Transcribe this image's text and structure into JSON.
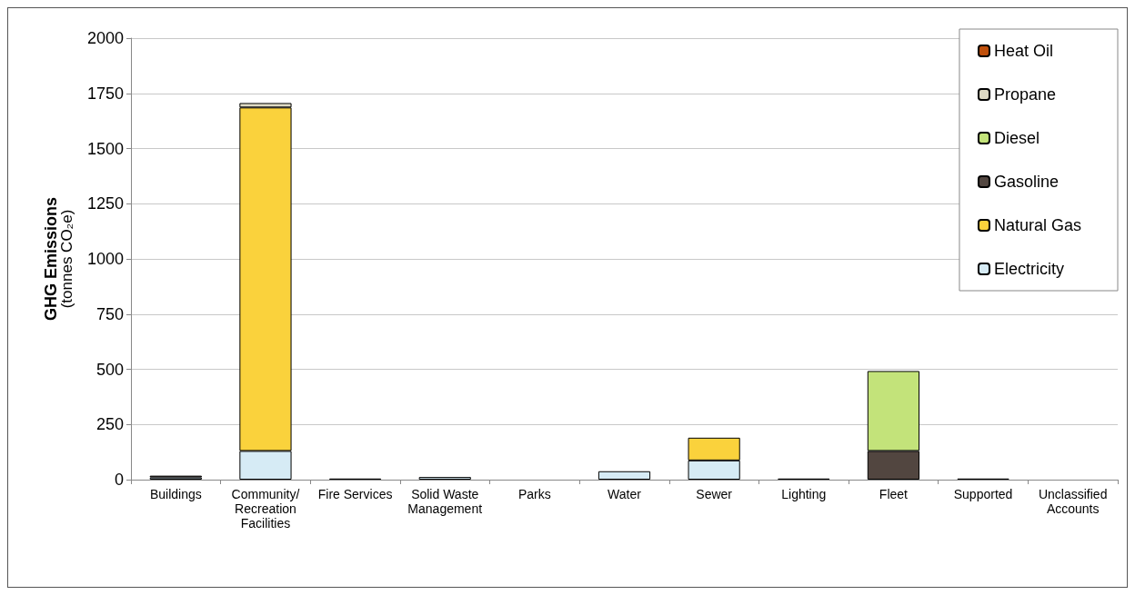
{
  "chart_data": {
    "type": "bar",
    "stacked": true,
    "ylabel": "GHG Emissions\n(tonnes CO₂e)",
    "categories": [
      "Buildings",
      "Community/\nRecreation\nFacilities",
      "Fire Services",
      "Solid Waste\nManagement",
      "Parks",
      "Water",
      "Sewer",
      "Lighting",
      "Fleet",
      "Supported",
      "Unclassified\nAccounts"
    ],
    "series": [
      {
        "name": "Electricity",
        "color": "#d6ebf5",
        "values": [
          10,
          130,
          null,
          12,
          null,
          38,
          87,
          null,
          null,
          null,
          null
        ]
      },
      {
        "name": "Natural Gas",
        "color": "#fad23c",
        "values": [
          null,
          1556,
          null,
          null,
          null,
          null,
          103,
          null,
          null,
          null,
          null
        ]
      },
      {
        "name": "Gasoline",
        "color": "#524640",
        "values": [
          8,
          null,
          5,
          null,
          null,
          null,
          null,
          5,
          130,
          5,
          null
        ]
      },
      {
        "name": "Diesel",
        "color": "#c3e37a",
        "values": [
          null,
          null,
          null,
          null,
          null,
          null,
          null,
          null,
          362,
          null,
          null
        ]
      },
      {
        "name": "Propane",
        "color": "#ddd9c3",
        "values": [
          null,
          20,
          null,
          null,
          null,
          null,
          null,
          null,
          null,
          null,
          null
        ]
      },
      {
        "name": "Heat Oil",
        "color": "#c0500c",
        "values": [
          null,
          null,
          null,
          null,
          null,
          null,
          null,
          null,
          null,
          null,
          null
        ]
      }
    ],
    "ylim": [
      0,
      2000
    ],
    "yticks": [
      0,
      250,
      500,
      750,
      1000,
      1250,
      1500,
      1750,
      2000
    ],
    "grid": "y",
    "legend": "top right"
  }
}
